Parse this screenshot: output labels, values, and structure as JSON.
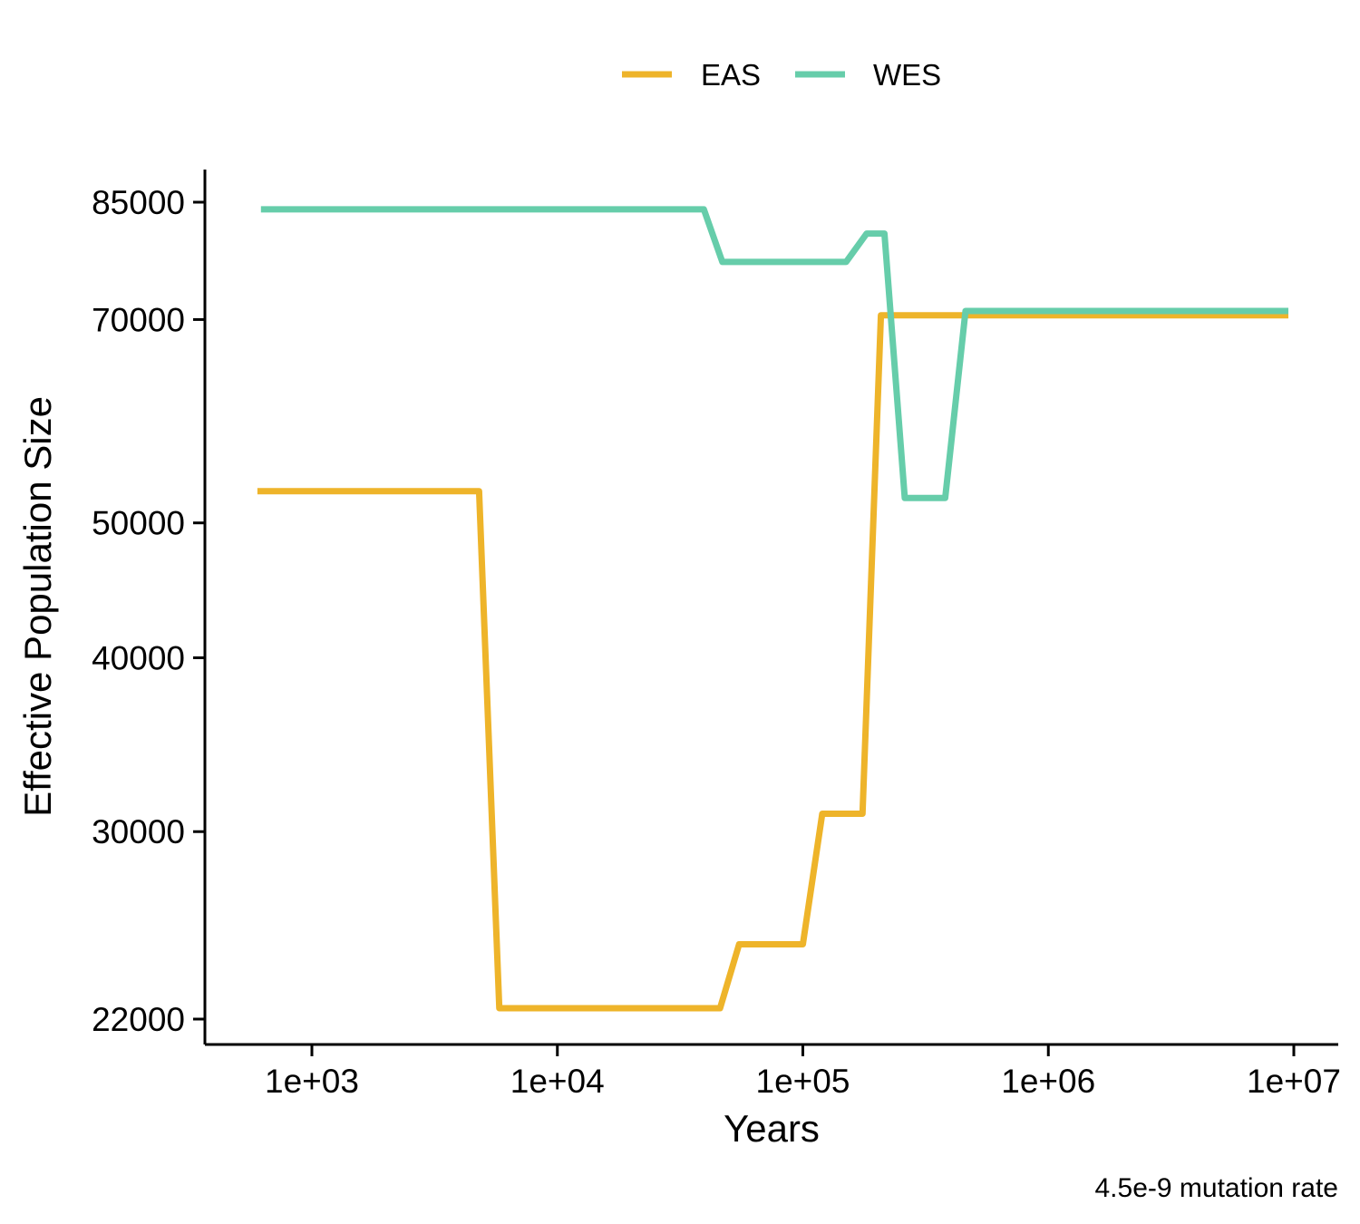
{
  "chart_data": {
    "type": "line",
    "xlabel": "Years",
    "ylabel": "Effective Population Size",
    "caption": "4.5e-9 mutation rate",
    "x_scale": "log10",
    "y_scale": "log10",
    "xlim": [
      450,
      12000000
    ],
    "ylim": [
      21000,
      89000
    ],
    "x_ticks": [
      1000,
      10000,
      100000,
      1000000,
      10000000
    ],
    "x_tick_labels": [
      "1e+03",
      "1e+04",
      "1e+05",
      "1e+06",
      "1e+07"
    ],
    "y_ticks": [
      22000,
      30000,
      40000,
      50000,
      70000,
      85000
    ],
    "y_tick_labels": [
      "22000",
      "30000",
      "40000",
      "50000",
      "70000",
      "85000"
    ],
    "grid": false,
    "legend_position": "top",
    "series": [
      {
        "name": "EAS",
        "color": "#EEB42A",
        "points": [
          [
            600,
            52700
          ],
          [
            4800,
            52700
          ],
          [
            5800,
            22400
          ],
          [
            46000,
            22400
          ],
          [
            55000,
            24900
          ],
          [
            100000,
            24900
          ],
          [
            120000,
            30900
          ],
          [
            175000,
            30900
          ],
          [
            208000,
            70500
          ],
          [
            9500000,
            70500
          ]
        ]
      },
      {
        "name": "WES",
        "color": "#66CDAA",
        "points": [
          [
            620,
            84000
          ],
          [
            39500,
            84000
          ],
          [
            47000,
            77000
          ],
          [
            150000,
            77000
          ],
          [
            182000,
            80700
          ],
          [
            215000,
            80700
          ],
          [
            260000,
            52100
          ],
          [
            380000,
            52100
          ],
          [
            460000,
            71000
          ],
          [
            9500000,
            71000
          ]
        ]
      }
    ]
  }
}
